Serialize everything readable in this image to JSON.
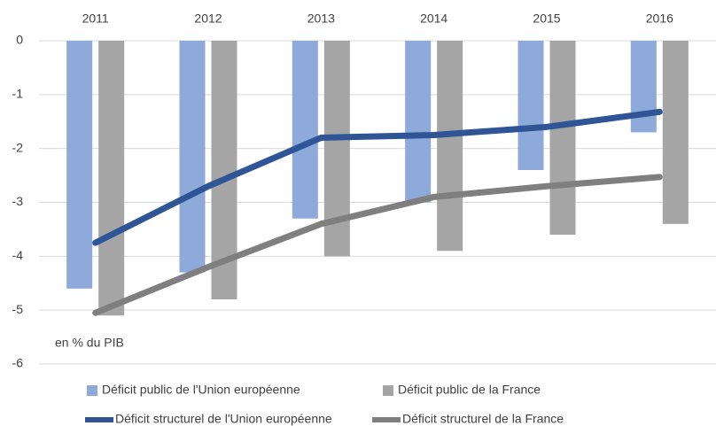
{
  "chart_data": {
    "type": "bar",
    "categories": [
      "2011",
      "2012",
      "2013",
      "2014",
      "2015",
      "2016"
    ],
    "series": [
      {
        "name": "Déficit public de l'Union européenne",
        "type": "bar",
        "color": "#8eaadb",
        "values": [
          -4.6,
          -4.3,
          -3.3,
          -3.0,
          -2.4,
          -1.7
        ]
      },
      {
        "name": "Déficit public de la France",
        "type": "bar",
        "color": "#a5a5a5",
        "values": [
          -5.1,
          -4.8,
          -4.0,
          -3.9,
          -3.6,
          -3.4
        ]
      },
      {
        "name": "Déficit structurel de l'Union européenne",
        "type": "line",
        "color": "#2f5597",
        "values": [
          -3.75,
          -2.7,
          -1.8,
          -1.75,
          -1.6,
          -1.32
        ]
      },
      {
        "name": "Déficit structurel de la France",
        "type": "line",
        "color": "#7f7f7f",
        "values": [
          -5.05,
          -4.2,
          -3.4,
          -2.9,
          -2.7,
          -2.53
        ]
      }
    ],
    "annotation": "en % du PIB",
    "ylim": [
      -6,
      0
    ],
    "yticks": [
      0,
      -1,
      -2,
      -3,
      -4,
      -5,
      -6
    ],
    "grid": true,
    "legend": "bottom"
  }
}
